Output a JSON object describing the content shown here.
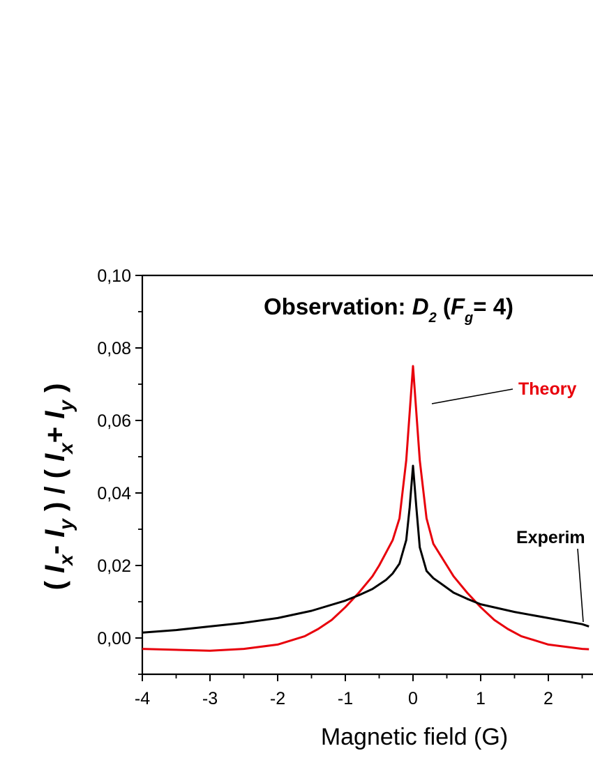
{
  "chart_data": {
    "type": "line",
    "title_parts": {
      "main": "Observation: ",
      "D": "D",
      "D_sub": "2",
      "open": " (",
      "F": "F",
      "F_sub": "g",
      "rest": "= 4)"
    },
    "xlabel": "Magnetic field (G)",
    "ylabel_parts": [
      "( ",
      "I",
      "x",
      "- ",
      "I",
      "y",
      " ) / ( ",
      "I",
      "x",
      "+ ",
      "I",
      "y",
      " )"
    ],
    "xlim": [
      -4,
      2.6
    ],
    "ylim": [
      -0.01,
      0.1
    ],
    "x_ticks": [
      -4,
      -3,
      -2,
      -1,
      0,
      1,
      2
    ],
    "x_tick_labels": [
      "-4",
      "-3",
      "-2",
      "-1",
      "0",
      "1",
      "2"
    ],
    "y_ticks": [
      0.0,
      0.02,
      0.04,
      0.06,
      0.08,
      0.1
    ],
    "y_tick_labels": [
      "0,00",
      "0,02",
      "0,04",
      "0,06",
      "0,08",
      "0,10"
    ],
    "grid": false,
    "series": [
      {
        "name": "Theory",
        "color": "#e8000b",
        "x": [
          -4.0,
          -3.0,
          -2.5,
          -2.0,
          -1.6,
          -1.4,
          -1.2,
          -1.0,
          -0.8,
          -0.6,
          -0.5,
          -0.4,
          -0.3,
          -0.2,
          -0.1,
          0.0,
          0.1,
          0.2,
          0.3,
          0.4,
          0.5,
          0.6,
          0.8,
          1.0,
          1.2,
          1.4,
          1.6,
          2.0,
          2.5,
          2.6
        ],
        "y": [
          -0.003,
          -0.0035,
          -0.003,
          -0.0018,
          0.0005,
          0.0025,
          0.005,
          0.0085,
          0.0125,
          0.017,
          0.02,
          0.0235,
          0.027,
          0.033,
          0.049,
          0.075,
          0.049,
          0.033,
          0.026,
          0.023,
          0.02,
          0.017,
          0.0125,
          0.0085,
          0.005,
          0.0025,
          0.0005,
          -0.0018,
          -0.003,
          -0.0031
        ]
      },
      {
        "name": "Experiment",
        "color": "#000000",
        "x": [
          -4.0,
          -3.5,
          -3.0,
          -2.5,
          -2.0,
          -1.5,
          -1.0,
          -0.8,
          -0.6,
          -0.4,
          -0.3,
          -0.2,
          -0.1,
          -0.05,
          0.0,
          0.05,
          0.1,
          0.2,
          0.3,
          0.4,
          0.6,
          0.8,
          1.0,
          1.5,
          2.0,
          2.5,
          2.6
        ],
        "y": [
          0.0015,
          0.0022,
          0.0032,
          0.0042,
          0.0055,
          0.0075,
          0.0103,
          0.0118,
          0.0135,
          0.016,
          0.0178,
          0.0205,
          0.027,
          0.036,
          0.0475,
          0.036,
          0.025,
          0.0185,
          0.0165,
          0.0152,
          0.0125,
          0.0108,
          0.0093,
          0.0072,
          0.0055,
          0.0038,
          0.0032
        ]
      }
    ],
    "annotations": {
      "theory_label": "Theory",
      "experiment_label": "Experim"
    }
  }
}
